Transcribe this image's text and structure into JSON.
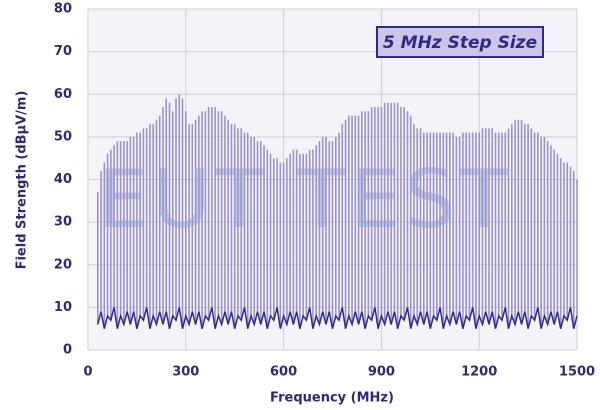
{
  "chart_data": {
    "type": "spectrum",
    "x_label": "Frequency (MHz)",
    "y_label": "Field Strength (dBµV/m)",
    "annotation": "5 MHz Step Size",
    "watermark": "EUT TEST",
    "x": [
      30,
      40,
      50,
      60,
      70,
      80,
      90,
      100,
      110,
      120,
      130,
      140,
      150,
      160,
      170,
      180,
      190,
      200,
      210,
      220,
      230,
      240,
      250,
      260,
      270,
      280,
      290,
      300,
      310,
      320,
      330,
      340,
      350,
      360,
      370,
      380,
      390,
      400,
      410,
      420,
      430,
      440,
      450,
      460,
      470,
      480,
      490,
      500,
      510,
      520,
      530,
      540,
      550,
      560,
      570,
      580,
      590,
      600,
      610,
      620,
      630,
      640,
      650,
      660,
      670,
      680,
      690,
      700,
      710,
      720,
      730,
      740,
      750,
      760,
      770,
      780,
      790,
      800,
      810,
      820,
      830,
      840,
      850,
      860,
      870,
      880,
      890,
      900,
      910,
      920,
      930,
      940,
      950,
      960,
      970,
      980,
      990,
      1000,
      1010,
      1020,
      1030,
      1040,
      1050,
      1060,
      1070,
      1080,
      1090,
      1100,
      1110,
      1120,
      1130,
      1140,
      1150,
      1160,
      1170,
      1180,
      1190,
      1200,
      1210,
      1220,
      1230,
      1240,
      1250,
      1260,
      1270,
      1280,
      1290,
      1300,
      1310,
      1320,
      1330,
      1340,
      1350,
      1360,
      1370,
      1380,
      1390,
      1400,
      1410,
      1420,
      1430,
      1440,
      1450,
      1460,
      1470,
      1480,
      1490,
      1500
    ],
    "values": [
      37,
      42,
      44,
      46,
      47,
      48,
      49,
      49,
      49,
      49,
      50,
      50,
      51,
      51,
      52,
      52,
      53,
      53,
      54,
      55,
      57,
      59,
      58,
      56,
      59,
      60,
      59,
      56,
      53,
      53,
      54,
      55,
      56,
      56,
      57,
      57,
      57,
      56,
      56,
      55,
      54,
      53,
      53,
      52,
      52,
      51,
      51,
      50,
      50,
      49,
      49,
      48,
      47,
      46,
      45,
      45,
      44,
      44,
      45,
      46,
      47,
      47,
      46,
      46,
      46,
      47,
      47,
      48,
      49,
      50,
      50,
      49,
      49,
      50,
      51,
      53,
      54,
      55,
      55,
      55,
      55,
      56,
      56,
      56,
      57,
      57,
      57,
      57,
      58,
      58,
      58,
      58,
      58,
      57,
      57,
      56,
      55,
      53,
      52,
      52,
      51,
      51,
      51,
      51,
      51,
      51,
      51,
      51,
      51,
      51,
      50,
      50,
      51,
      51,
      51,
      51,
      51,
      51,
      52,
      52,
      52,
      52,
      51,
      51,
      51,
      51,
      52,
      53,
      54,
      54,
      54,
      53,
      53,
      52,
      51,
      51,
      50,
      50,
      49,
      48,
      47,
      46,
      45,
      44,
      44,
      43,
      42,
      40
    ],
    "floor_values": [
      6,
      9,
      5,
      8,
      7,
      10,
      5,
      8,
      6,
      9,
      6,
      9,
      5,
      8,
      7,
      10,
      5,
      8,
      6,
      9,
      6,
      9,
      5,
      8,
      7,
      10,
      5,
      8,
      6,
      9,
      6,
      9,
      5,
      8,
      7,
      10,
      5,
      8,
      6,
      9,
      6,
      9,
      5,
      8,
      7,
      10,
      5,
      8,
      6,
      9,
      6,
      9,
      5,
      8,
      7,
      10,
      5,
      8,
      6,
      9,
      6,
      9,
      5,
      8,
      7,
      10,
      5,
      8,
      6,
      9,
      6,
      9,
      5,
      8,
      7,
      10,
      5,
      8,
      6,
      9,
      6,
      9,
      5,
      8,
      7,
      10,
      5,
      8,
      6,
      9,
      6,
      9,
      5,
      8,
      7,
      10,
      5,
      8,
      6,
      9,
      6,
      9,
      5,
      8,
      7,
      10,
      5,
      8,
      6,
      9,
      6,
      9,
      5,
      8,
      7,
      10,
      5,
      8,
      6,
      9,
      6,
      9,
      5,
      8,
      7,
      10,
      5,
      8,
      6,
      9,
      6,
      9,
      5,
      8,
      7,
      10,
      5,
      8,
      6,
      9,
      6,
      9,
      5,
      8,
      7,
      10,
      5,
      8
    ],
    "color": "#9d93c9",
    "floor_color": "#2f2a86",
    "xlim": [
      0,
      1500
    ],
    "xticks": [
      0,
      300,
      600,
      900,
      1200,
      1500
    ],
    "ylim": [
      0,
      80
    ],
    "yticks": [
      0,
      10,
      20,
      30,
      40,
      50,
      60,
      70,
      80
    ],
    "grid": true
  }
}
